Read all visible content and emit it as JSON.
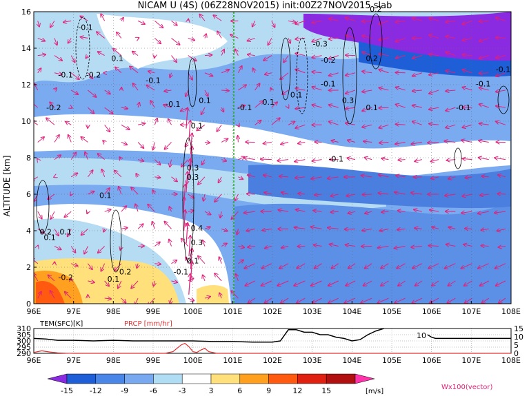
{
  "colors": {
    "vector": "#e0207a",
    "center_line": "#22aa22",
    "contour": "#000000",
    "temp_line": "#000000",
    "prcp_line": "#e03030",
    "scale_labels": [
      "#8a2be2",
      "#1e5fd8",
      "#3f7fe0",
      "#6fa0ec",
      "#aad4f0",
      "#ffffff",
      "#ffe07a",
      "#ffa020",
      "#ff5a10",
      "#e02010",
      "#b01010",
      "#ff33aa"
    ]
  },
  "chart_data": {
    "type": "heatmap",
    "title": "NICAM U (4S) (06Z28NOV2015) init:00Z27NOV2015 slab",
    "xlabel": "",
    "ylabel": "ALTITUDE [km]",
    "x_ticks": [
      "96E",
      "97E",
      "98E",
      "99E",
      "100E",
      "101E",
      "102E",
      "103E",
      "104E",
      "105E",
      "106E",
      "107E",
      "108E"
    ],
    "x_range": [
      96,
      108
    ],
    "y_ticks": [
      "0",
      "2",
      "4",
      "6",
      "8",
      "10",
      "12",
      "14",
      "16"
    ],
    "y_range": [
      0,
      16
    ],
    "grid": "dotted",
    "colorbar": {
      "levels": [
        "-15",
        "-12",
        "-9",
        "-6",
        "-3",
        "3",
        "6",
        "9",
        "12",
        "15"
      ],
      "unit": "[m/s]",
      "colors": [
        "#8a2be2",
        "#1e5fd8",
        "#4a86e8",
        "#78a8f0",
        "#b0dcf4",
        "#ffffff",
        "#ffe07a",
        "#ffa020",
        "#ff5a10",
        "#e02010",
        "#b01010"
      ],
      "extend_high_color": "#ff33aa"
    },
    "vector_label": "Wx100(vector)",
    "center_longitude": 101,
    "contour_labels": [
      {
        "text": "-0.1",
        "x": 97.3,
        "y": 15.0
      },
      {
        "text": "0.1",
        "x": 98.1,
        "y": 13.3
      },
      {
        "text": "-0.1",
        "x": 96.8,
        "y": 12.4
      },
      {
        "text": "-0.2",
        "x": 97.5,
        "y": 12.4
      },
      {
        "text": "-0.1",
        "x": 99.0,
        "y": 12.1
      },
      {
        "text": "-0.2",
        "x": 96.5,
        "y": 10.6
      },
      {
        "text": "-0.1",
        "x": 99.5,
        "y": 10.8
      },
      {
        "text": "0.1",
        "x": 100.3,
        "y": 11.0
      },
      {
        "text": "-0.1",
        "x": 101.3,
        "y": 10.6
      },
      {
        "text": "0.1",
        "x": 101.9,
        "y": 10.9
      },
      {
        "text": "0.1",
        "x": 102.6,
        "y": 11.3
      },
      {
        "text": "0.1",
        "x": 100.1,
        "y": 9.6
      },
      {
        "text": "0.2",
        "x": 104.6,
        "y": 16.0
      },
      {
        "text": "-0.3",
        "x": 103.2,
        "y": 14.1
      },
      {
        "text": "-0.2",
        "x": 103.4,
        "y": 13.2
      },
      {
        "text": "-0.1",
        "x": 103.4,
        "y": 11.9
      },
      {
        "text": "0.2",
        "x": 104.5,
        "y": 13.3
      },
      {
        "text": "0.3",
        "x": 103.9,
        "y": 11.0
      },
      {
        "text": "0.1",
        "x": 104.5,
        "y": 10.6
      },
      {
        "text": "-0.1",
        "x": 103.6,
        "y": 7.8
      },
      {
        "text": "-0.1",
        "x": 106.8,
        "y": 10.6
      },
      {
        "text": "-0.1",
        "x": 107.3,
        "y": 11.9
      },
      {
        "text": "-0.1",
        "x": 107.8,
        "y": 12.7
      },
      {
        "text": "0.3",
        "x": 100.0,
        "y": 7.3
      },
      {
        "text": "0.3",
        "x": 100.0,
        "y": 6.8
      },
      {
        "text": "0.1",
        "x": 97.8,
        "y": 5.8
      },
      {
        "text": "0.4",
        "x": 100.1,
        "y": 4.0
      },
      {
        "text": "0.3",
        "x": 100.1,
        "y": 3.2
      },
      {
        "text": "0.1",
        "x": 100.0,
        "y": 2.2
      },
      {
        "text": "-0.1",
        "x": 99.7,
        "y": 1.6
      },
      {
        "text": "0.2",
        "x": 96.3,
        "y": 3.8
      },
      {
        "text": "0.1",
        "x": 96.4,
        "y": 3.5
      },
      {
        "text": "0.1",
        "x": 96.8,
        "y": 3.8
      },
      {
        "text": "-0.2",
        "x": 96.8,
        "y": 1.3
      },
      {
        "text": "0.2",
        "x": 98.3,
        "y": 1.6
      },
      {
        "text": "0.1",
        "x": 98.0,
        "y": 1.2
      }
    ],
    "lower_panel": {
      "labels": {
        "temperature": "TEM(SFC)[K]",
        "precipitation": "PRCP [mm/hr]"
      },
      "left_ticks": [
        "310",
        "305",
        "300",
        "295",
        "290"
      ],
      "left_range": [
        290,
        310
      ],
      "right_ticks": [
        "15",
        "10",
        "5",
        "0"
      ],
      "right_range": [
        0,
        15
      ],
      "inline_label": "10",
      "temperature": {
        "x": [
          96.0,
          96.3,
          96.6,
          97.0,
          97.5,
          98.0,
          98.5,
          99.0,
          99.5,
          100.0,
          100.5,
          101.0,
          101.5,
          102.0,
          102.2,
          102.4,
          102.6,
          102.8,
          103.0,
          103.2,
          103.4,
          103.6,
          103.8,
          104.0,
          104.2,
          104.4,
          104.6,
          104.8
        ],
        "y": [
          302,
          301.5,
          300.5,
          300.5,
          300,
          300.5,
          300,
          300,
          300,
          300,
          299.5,
          299.5,
          299,
          299,
          300,
          309,
          309,
          307,
          307,
          305,
          305,
          303,
          302,
          300,
          301,
          305,
          308,
          310
        ]
      },
      "temperature_tail": {
        "x": [
          105.9,
          106.0,
          106.1,
          106.2,
          106.4,
          106.8,
          107.2,
          107.6,
          108.0
        ],
        "y": [
          305,
          303,
          302,
          302,
          302,
          302,
          302,
          302,
          302
        ]
      },
      "precipitation": {
        "x": [
          96.0,
          96.2,
          96.4,
          96.6,
          96.8,
          97.0,
          97.4,
          98.0,
          99.0,
          99.3,
          99.5,
          99.6,
          99.7,
          99.8,
          99.9,
          100.0,
          100.1,
          100.2,
          100.3,
          100.4,
          100.6,
          101.0,
          102.0,
          103.0,
          104.0,
          105.0,
          106.0,
          107.0,
          108.0
        ],
        "y": [
          0.5,
          1.5,
          0.8,
          0.3,
          0.1,
          0,
          0,
          0,
          0,
          0,
          1,
          3,
          5,
          6,
          4,
          1,
          0.5,
          2,
          3,
          1,
          0,
          0,
          0,
          0,
          0,
          0,
          0,
          0,
          0
        ]
      }
    }
  }
}
